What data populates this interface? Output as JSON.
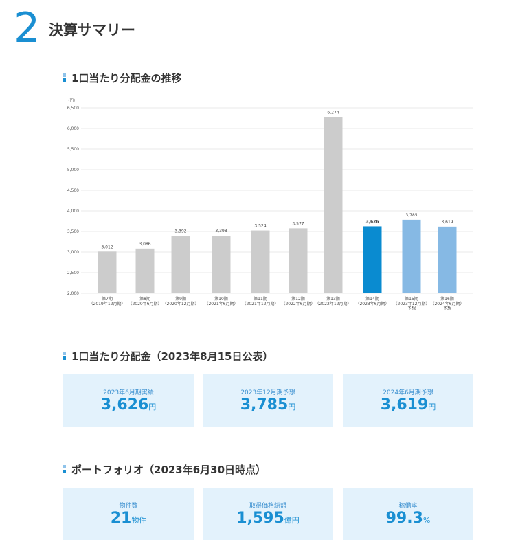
{
  "section": {
    "number": "2",
    "title": "決算サマリー"
  },
  "chart_section": {
    "title": "1口当たり分配金の推移"
  },
  "chart_data": {
    "type": "bar",
    "unit_label": "（円）",
    "ylim": [
      2000,
      6500
    ],
    "yticks": [
      "2,000",
      "2,500",
      "3,000",
      "3,500",
      "4,000",
      "4,500",
      "5,000",
      "5,500",
      "6,000",
      "6,500"
    ],
    "grid": true,
    "categories": [
      [
        "第7期",
        "（2019年12月期）"
      ],
      [
        "第8期",
        "（2020年6月期）"
      ],
      [
        "第9期",
        "（2020年12月期）"
      ],
      [
        "第10期",
        "（2021年6月期）"
      ],
      [
        "第11期",
        "（2021年12月期）"
      ],
      [
        "第12期",
        "（2022年6月期）"
      ],
      [
        "第13期",
        "（2022年12月期）"
      ],
      [
        "第14期",
        "（2023年6月期）"
      ],
      [
        "第15期",
        "（2023年12月期）",
        "予想"
      ],
      [
        "第16期",
        "（2024年6月期）",
        "予想"
      ]
    ],
    "values": [
      3012,
      3086,
      3392,
      3398,
      3524,
      3577,
      6274,
      3626,
      3785,
      3619
    ],
    "value_labels": [
      "3,012",
      "3,086",
      "3,392",
      "3,398",
      "3,524",
      "3,577",
      "6,274",
      "3,626",
      "3,785",
      "3,619"
    ],
    "bar_status": [
      "actual",
      "actual",
      "actual",
      "actual",
      "actual",
      "actual",
      "actual",
      "current",
      "forecast",
      "forecast"
    ],
    "colors": {
      "actual": "#cccccc",
      "current": "#0a8bd0",
      "forecast": "#86b9e4"
    }
  },
  "distribution_section": {
    "title": "1口当たり分配金（2023年8月15日公表）",
    "cards": [
      {
        "label": "2023年6月期実績",
        "value": "3,626",
        "unit": "円"
      },
      {
        "label": "2023年12月期予想",
        "value": "3,785",
        "unit": "円"
      },
      {
        "label": "2024年6月期予想",
        "value": "3,619",
        "unit": "円"
      }
    ]
  },
  "portfolio_section": {
    "title": "ポートフォリオ（2023年6月30日時点）",
    "cards": [
      {
        "label": "物件数",
        "value": "21",
        "unit": "物件"
      },
      {
        "label": "取得価格総額",
        "value": "1,595",
        "unit": "億円"
      },
      {
        "label": "稼働率",
        "value": "99.3",
        "unit": "%"
      }
    ]
  }
}
